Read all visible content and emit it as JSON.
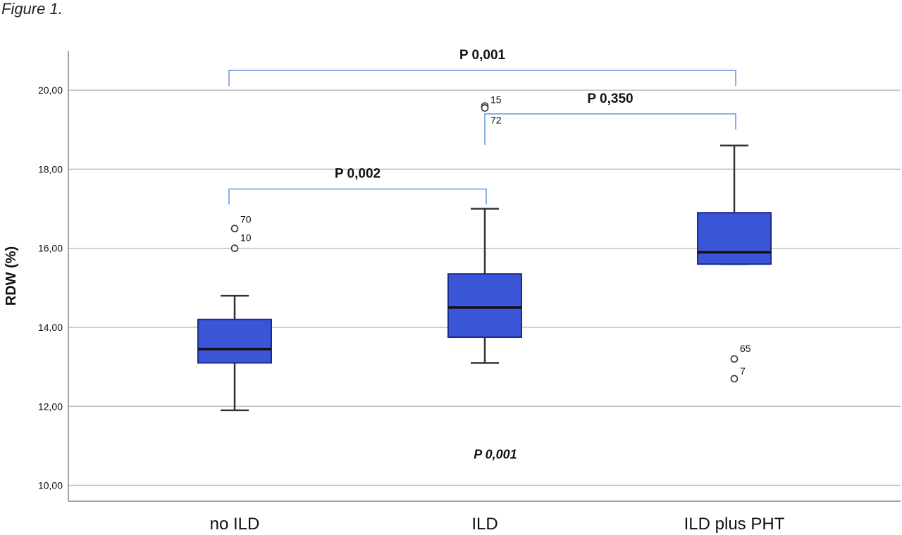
{
  "caption": "Figure 1.",
  "chart_data": {
    "type": "box",
    "ylabel": "RDW (%)",
    "ylim": [
      9.6,
      21.0
    ],
    "yticks": [
      10,
      12,
      14,
      16,
      18,
      20
    ],
    "ytick_labels": [
      "10,00",
      "12,00",
      "14,00",
      "16,00",
      "18,00",
      "20,00"
    ],
    "grid": true,
    "categories": [
      "no ILD",
      "ILD",
      "ILD plus PHT"
    ],
    "boxes": [
      {
        "category": "no ILD",
        "whisker_low": 11.9,
        "q1": 13.1,
        "median": 13.45,
        "q3": 14.2,
        "whisker_high": 14.8,
        "outliers": [
          {
            "value": 16.5,
            "label": "70"
          },
          {
            "value": 16.0,
            "label": "10"
          }
        ]
      },
      {
        "category": "ILD",
        "whisker_low": 13.1,
        "q1": 13.75,
        "median": 14.5,
        "q3": 15.35,
        "whisker_high": 17.0,
        "outliers": [
          {
            "value": 19.6,
            "label": "15"
          },
          {
            "value": 19.55,
            "label": "72"
          }
        ]
      },
      {
        "category": "ILD plus PHT",
        "whisker_low": 15.6,
        "q1": 15.6,
        "median": 15.9,
        "q3": 16.9,
        "whisker_high": 18.6,
        "outliers": [
          {
            "value": 13.2,
            "label": "65"
          },
          {
            "value": 12.7,
            "label": "7"
          }
        ]
      }
    ],
    "comparisons": [
      {
        "from": "no ILD",
        "to": "ILD plus PHT",
        "label": "P 0,001",
        "level": 20.5
      },
      {
        "from": "ILD",
        "to": "ILD plus PHT",
        "label": "P 0,350",
        "level": 19.4
      },
      {
        "from": "no ILD",
        "to": "ILD",
        "label": "P 0,002",
        "level": 17.5
      }
    ],
    "overall_annotation": "P 0,001",
    "colors": {
      "box_fill": "#3a55d6",
      "box_edge": "#1c2b8a",
      "bracket": "#6a9ae6",
      "grid": "#bfbfbf",
      "axis": "#888888",
      "text": "#111111"
    }
  }
}
